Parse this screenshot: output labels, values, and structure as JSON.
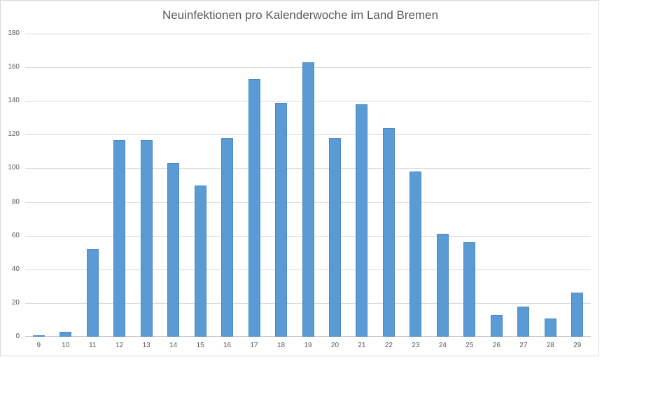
{
  "chart_data": {
    "type": "bar",
    "title": "Neuinfektionen pro Kalenderwoche im Land Bremen",
    "xlabel": "",
    "ylabel": "",
    "categories": [
      "9",
      "10",
      "11",
      "12",
      "13",
      "14",
      "15",
      "16",
      "17",
      "18",
      "19",
      "20",
      "21",
      "22",
      "23",
      "24",
      "25",
      "26",
      "27",
      "28",
      "29"
    ],
    "values": [
      1,
      3,
      52,
      117,
      117,
      103,
      90,
      118,
      153,
      139,
      163,
      118,
      138,
      124,
      98,
      61,
      56,
      13,
      18,
      11,
      26
    ],
    "ylim": [
      0,
      180
    ],
    "yticks": [
      0,
      20,
      40,
      60,
      80,
      100,
      120,
      140,
      160,
      180
    ],
    "grid": true,
    "legend": null,
    "bar_color": "#5b9bd5"
  }
}
